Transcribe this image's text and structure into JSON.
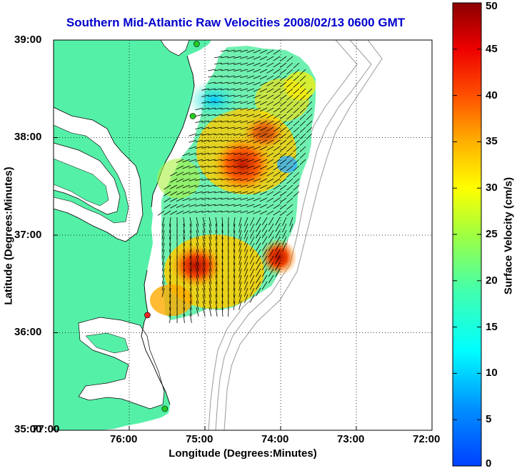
{
  "title": "Southern Mid-Atlantic Raw Velocities 2008/02/13 0600 GMT",
  "title_color": "#0000cc",
  "axes": {
    "xlabel": "Longitude (Degrees:Minutes)",
    "ylabel": "Latitude (Degrees:Minutes)",
    "xticks": [
      "77:00",
      "76:00",
      "75:00",
      "74:00",
      "73:00",
      "72:00"
    ],
    "yticks": [
      "39:00",
      "38:00",
      "37:00",
      "36:00",
      "35:00"
    ],
    "xlim": [
      -77,
      -72
    ],
    "ylim": [
      35,
      39
    ]
  },
  "colorbar": {
    "label": "Surface Velocity (cm/s)",
    "ticks": [
      "50",
      "45",
      "40",
      "35",
      "30",
      "25",
      "20",
      "15",
      "10",
      "5",
      "0"
    ],
    "range": [
      0,
      50
    ],
    "colormap": "jet"
  },
  "colors": {
    "land": "#55f0a8",
    "ocean": "#ffffff",
    "isobath": "#999999",
    "station_green": "#22cc22",
    "station_red": "#ee2222"
  },
  "stations": [
    {
      "lon": -75.11,
      "lat": 38.96,
      "color": "green"
    },
    {
      "lon": -75.16,
      "lat": 38.22,
      "color": "green"
    },
    {
      "lon": -75.76,
      "lat": 36.18,
      "color": "red"
    },
    {
      "lon": -75.53,
      "lat": 35.22,
      "color": "green"
    }
  ]
}
